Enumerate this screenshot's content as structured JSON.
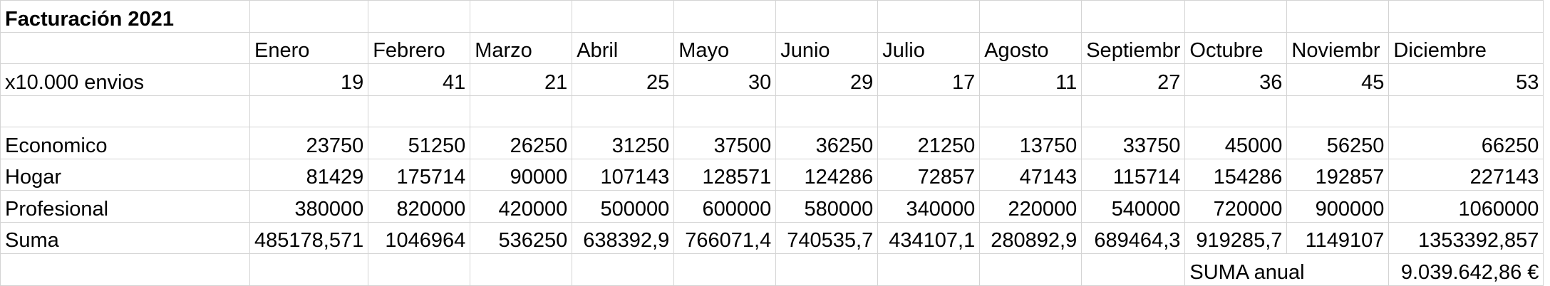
{
  "sheet": {
    "title": "Facturación 2021",
    "months": [
      "Enero",
      "Febrero",
      "Marzo",
      "Abril",
      "Mayo",
      "Junio",
      "Julio",
      "Agosto",
      "Septiembr",
      "Octubre",
      "Noviembr",
      "Diciembre"
    ],
    "rows": [
      {
        "label": "x10.000 envios",
        "values": [
          "19",
          "41",
          "21",
          "25",
          "30",
          "29",
          "17",
          "11",
          "27",
          "36",
          "45",
          "53"
        ]
      },
      {
        "label": "Economico",
        "values": [
          "23750",
          "51250",
          "26250",
          "31250",
          "37500",
          "36250",
          "21250",
          "13750",
          "33750",
          "45000",
          "56250",
          "66250"
        ]
      },
      {
        "label": "Hogar",
        "values": [
          "81429",
          "175714",
          "90000",
          "107143",
          "128571",
          "124286",
          "72857",
          "47143",
          "115714",
          "154286",
          "192857",
          "227143"
        ]
      },
      {
        "label": "Profesional",
        "values": [
          "380000",
          "820000",
          "420000",
          "500000",
          "600000",
          "580000",
          "340000",
          "220000",
          "540000",
          "720000",
          "900000",
          "1060000"
        ]
      },
      {
        "label": "Suma",
        "values": [
          "485178,571",
          "1046964",
          "536250",
          "638392,9",
          "766071,4",
          "740535,7",
          "434107,1",
          "280892,9",
          "689464,3",
          "919285,7",
          "1149107",
          "1353392,857"
        ]
      }
    ],
    "annual_label": "SUMA anual",
    "annual_value": "9.039.642,86 €"
  }
}
